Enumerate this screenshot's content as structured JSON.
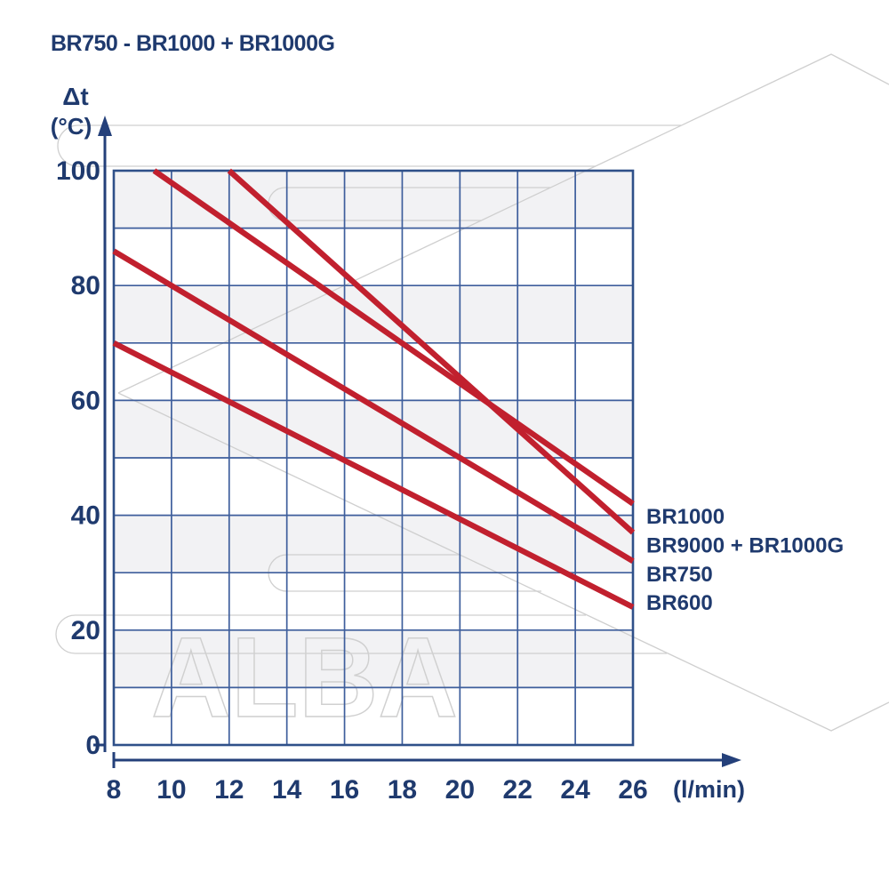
{
  "title": "BR750 - BR1000 + BR1000G",
  "watermark": {
    "text": "ALBA"
  },
  "colors": {
    "navy_text": "#1f3a6e",
    "axis_navy": "#24407a",
    "grid_blue": "#3e5e9c",
    "grid_border_blue": "#2f5089",
    "line_red": "#c1202e",
    "band_gray": "#f2f2f4",
    "watermark_gray": "#cfcfcf"
  },
  "chart_data": {
    "type": "line",
    "title": "BR750 - BR1000 + BR1000G",
    "xlabel": "(l/min)",
    "ylabel": "Δt (°C)",
    "ylabel_lines": [
      "Δt",
      "(°C)"
    ],
    "xlim": [
      8,
      26
    ],
    "ylim": [
      0,
      100
    ],
    "x_ticks": [
      8,
      10,
      12,
      14,
      16,
      18,
      20,
      22,
      24,
      26
    ],
    "y_ticks": [
      0,
      20,
      40,
      60,
      80,
      100
    ],
    "x_gridline_step": 2,
    "y_gridline_step": 10,
    "grid": true,
    "legend_position": "right-of-plot",
    "shaded_bands_y": [
      [
        90,
        100
      ],
      [
        70,
        80
      ],
      [
        50,
        60
      ],
      [
        30,
        40
      ],
      [
        10,
        20
      ]
    ],
    "series": [
      {
        "name": "BR1000",
        "points": [
          [
            9.4,
            100
          ],
          [
            26,
            42
          ]
        ]
      },
      {
        "name": "BR9000 + BR1000G",
        "points": [
          [
            12,
            100
          ],
          [
            26,
            37
          ]
        ]
      },
      {
        "name": "BR750",
        "points": [
          [
            8,
            86
          ],
          [
            26,
            32
          ]
        ]
      },
      {
        "name": "BR600",
        "points": [
          [
            8,
            70
          ],
          [
            26,
            24
          ]
        ]
      }
    ],
    "series_labels": [
      "BR1000",
      "BR9000 + BR1000G",
      "BR750",
      "BR600"
    ]
  }
}
